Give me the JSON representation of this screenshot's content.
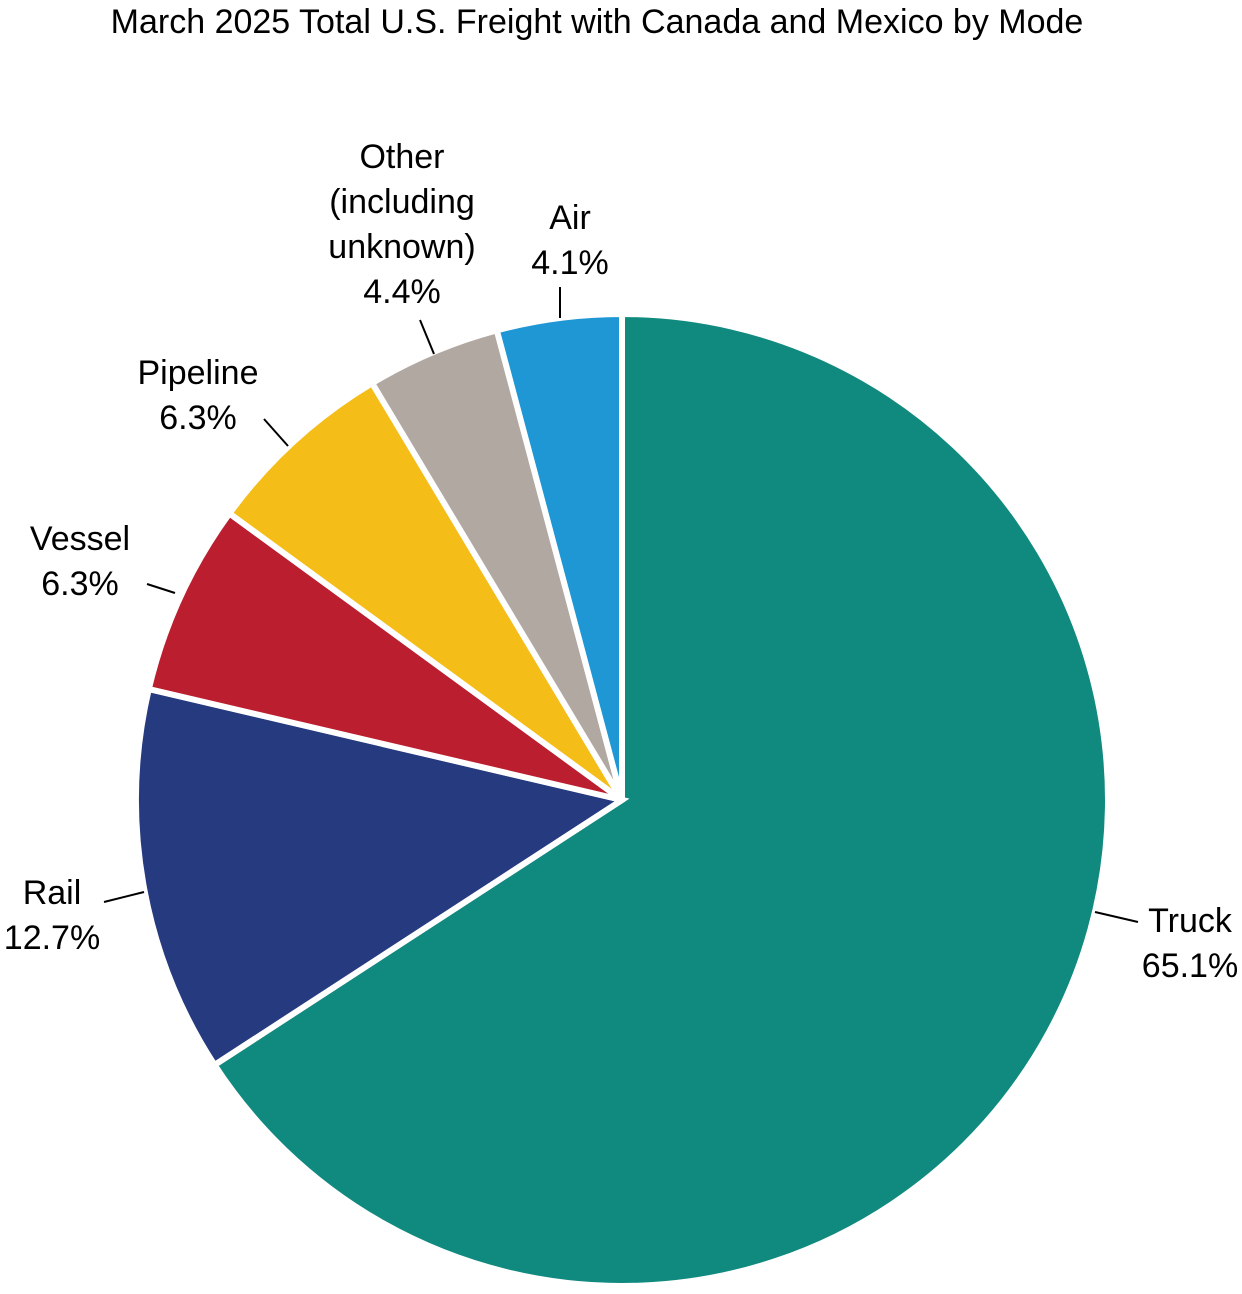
{
  "chart_data": {
    "type": "pie",
    "title": "March 2025 Total U.S. Freight with Canada and Mexico by Mode",
    "slices": [
      {
        "id": "truck",
        "label_lines": [
          "Truck",
          "65.1%"
        ],
        "value": 65.1,
        "color": "#10897f"
      },
      {
        "id": "rail",
        "label_lines": [
          "Rail",
          "12.7%"
        ],
        "value": 12.7,
        "color": "#263a80"
      },
      {
        "id": "vessel",
        "label_lines": [
          "Vessel",
          "6.3%"
        ],
        "value": 6.3,
        "color": "#bb1f2f"
      },
      {
        "id": "pipeline",
        "label_lines": [
          "Pipeline",
          "6.3%"
        ],
        "value": 6.3,
        "color": "#f5bd17"
      },
      {
        "id": "other",
        "label_lines": [
          "Other",
          "(including",
          "unknown)",
          "4.4%"
        ],
        "value": 4.4,
        "color": "#b1a8a2"
      },
      {
        "id": "air",
        "label_lines": [
          "Air",
          "4.1%"
        ],
        "value": 4.1,
        "color": "#1f97d5"
      }
    ],
    "start_angle": "12 o'clock",
    "direction": "clockwise"
  }
}
